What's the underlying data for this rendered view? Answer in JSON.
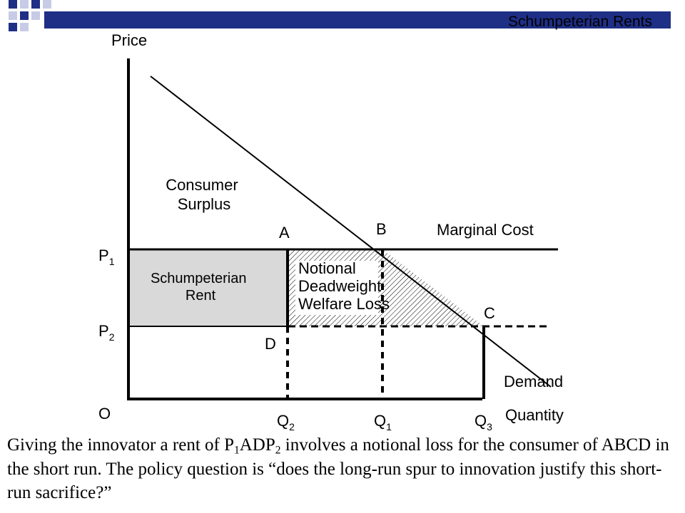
{
  "slide": {
    "title": "Schumpeterian Rents",
    "accent_color": "#1f2f86",
    "light_square_color": "#c7cbe6"
  },
  "diagram": {
    "y_axis_label": "Price",
    "x_axis_label": "Quantity",
    "origin_label": "O",
    "price_labels": [
      {
        "main": "P",
        "sub": "1"
      },
      {
        "main": "P",
        "sub": "2"
      }
    ],
    "quantity_labels": [
      {
        "main": "Q",
        "sub": "2"
      },
      {
        "main": "Q",
        "sub": "1"
      },
      {
        "main": "Q",
        "sub": "3"
      }
    ],
    "point_labels": {
      "a": "A",
      "b": "B",
      "c": "C",
      "d": "D"
    },
    "curve_labels": {
      "marginal_cost": "Marginal Cost",
      "demand": "Demand"
    },
    "region_labels": {
      "consumer_surplus": [
        "Consumer",
        "Surplus"
      ],
      "schumpeterian_rent": [
        "Schumpeterian",
        "Rent"
      ],
      "deadweight_loss": [
        "Notional",
        "Deadweight",
        "Welfare Loss"
      ]
    },
    "colors": {
      "rent_fill": "#d9d9d9",
      "line": "#000000"
    }
  },
  "caption": {
    "part1": "Giving the innovator a rent of P",
    "sub1": "1",
    "part2": "ADP",
    "sub2": "2",
    "part3": " involves a notional loss for the consumer of ABCD in the short run. The policy question is “does the long-run spur to innovation justify this short-run sacrifice?”"
  }
}
